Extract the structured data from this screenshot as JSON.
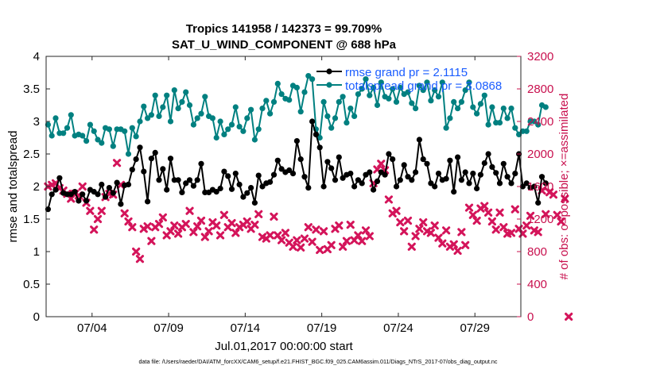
{
  "chart_data": {
    "type": "line",
    "title": "Tropics 141958 / 142373 = 99.709%",
    "subtitle": "SAT_U_WIND_COMPONENT @ 688 hPa",
    "xlabel": "Jul.01,2017 00:00:00 start",
    "ylabel_left": "rmse and totalspread",
    "ylabel_right": "# of obs: o=possible; ×=assimilated",
    "footer": "data file: /Users/raeder/DAI/ATM_forcXX/CAM6_setup/f.e21.FHIST_BGC.f09_025.CAM6assim.011/Diags_NTrS_2017-07/obs_diag_output.nc",
    "xlim": [
      1,
      32
    ],
    "ylim_left": [
      0,
      4
    ],
    "ylim_right": [
      0,
      3200
    ],
    "x_ticks": [
      4,
      9,
      14,
      19,
      24,
      29
    ],
    "x_tick_labels": [
      "07/04",
      "07/09",
      "07/14",
      "07/19",
      "07/24",
      "07/29"
    ],
    "y_left_ticks": [
      "0",
      "0.5",
      "1",
      "1.5",
      "2",
      "2.5",
      "3",
      "3.5",
      "4"
    ],
    "y_right_ticks": [
      "0",
      "400",
      "800",
      "1200",
      "1600",
      "2000",
      "2400",
      "2800",
      "3200"
    ],
    "legend": [
      {
        "label": "rmse grand pr = 2.1115",
        "color": "#000000"
      },
      {
        "label": "totalspread grand pr = 3.0868",
        "color": "#008080"
      }
    ],
    "colors": {
      "rmse": "#000000",
      "spread": "#008080",
      "obs": "#d4145a",
      "right_axis": "#c8104e",
      "legend_text": "#1a5cff"
    },
    "series": [
      {
        "name": "rmse",
        "x_start": 1.125,
        "x_step": 0.25,
        "values": [
          1.65,
          1.88,
          1.95,
          2.13,
          1.9,
          1.88,
          1.88,
          1.92,
          1.78,
          1.88,
          1.78,
          1.95,
          1.92,
          1.88,
          2.03,
          1.84,
          1.98,
          1.9,
          2.06,
          1.73,
          2.02,
          2.03,
          2.26,
          2.42,
          2.6,
          2.23,
          1.77,
          2.43,
          2.52,
          2.1,
          2.27,
          1.95,
          2.43,
          2.1,
          2.1,
          1.91,
          2.05,
          2.1,
          2.01,
          2.1,
          2.35,
          1.91,
          1.91,
          1.95,
          1.92,
          1.97,
          2.23,
          2.16,
          1.96,
          2.2,
          2.03,
          1.84,
          1.9,
          1.98,
          1.75,
          2.17,
          2.0,
          2.05,
          2.07,
          2.18,
          2.4,
          2.27,
          2.22,
          2.25,
          2.2,
          2.7,
          2.42,
          2.15,
          1.98,
          3.0,
          2.8,
          2.6,
          2.0,
          2.38,
          2.28,
          2.1,
          2.45,
          2.13,
          2.18,
          2.2,
          2.0,
          2.1,
          2.05,
          2.18,
          2.22,
          1.95,
          2.08,
          2.22,
          2.18,
          2.5,
          2.42,
          2.0,
          2.1,
          2.33,
          2.15,
          2.1,
          2.22,
          2.72,
          2.42,
          2.35,
          2.05,
          2.0,
          2.2,
          2.1,
          2.12,
          2.4,
          1.92,
          2.45,
          2.1,
          2.22,
          2.05,
          2.2,
          1.97,
          2.18,
          2.36,
          2.5,
          2.3,
          2.21,
          2.05,
          2.35,
          2.15,
          2.05,
          2.2,
          2.5,
          2.0,
          2.05,
          1.98,
          2.0,
          1.75,
          2.15,
          2.05
        ]
      },
      {
        "name": "totalspread",
        "x_start": 1.125,
        "x_step": 0.25,
        "values": [
          2.95,
          2.78,
          3.05,
          2.82,
          2.82,
          2.9,
          3.1,
          2.78,
          2.8,
          2.78,
          2.7,
          2.95,
          2.85,
          2.72,
          2.67,
          2.9,
          2.88,
          2.62,
          2.88,
          2.88,
          2.85,
          2.5,
          2.9,
          2.77,
          3.0,
          3.23,
          3.05,
          3.1,
          3.4,
          3.08,
          3.22,
          3.4,
          3.0,
          3.48,
          3.2,
          3.3,
          3.45,
          3.25,
          2.95,
          3.05,
          3.12,
          3.38,
          3.08,
          3.05,
          2.75,
          3.0,
          2.8,
          2.88,
          2.95,
          3.22,
          2.92,
          2.85,
          3.05,
          3.18,
          2.72,
          2.88,
          3.2,
          3.32,
          3.12,
          3.3,
          3.58,
          3.42,
          3.35,
          3.33,
          3.55,
          3.52,
          3.15,
          3.45,
          3.7,
          3.65,
          2.88,
          2.75,
          3.3,
          3.08,
          2.9,
          3.05,
          3.3,
          3.38,
          2.98,
          3.2,
          3.08,
          3.42,
          3.5,
          3.65,
          3.4,
          3.52,
          3.25,
          3.6,
          3.38,
          3.35,
          3.5,
          3.3,
          3.52,
          3.42,
          3.45,
          3.28,
          3.2,
          3.55,
          3.48,
          3.6,
          3.32,
          3.48,
          3.38,
          3.6,
          2.9,
          3.05,
          3.3,
          3.2,
          3.3,
          3.48,
          3.6,
          3.22,
          3.12,
          3.27,
          3.4,
          2.95,
          3.22,
          2.98,
          2.98,
          3.2,
          3.05,
          3.2,
          2.9,
          2.8,
          2.85,
          2.85,
          3.0,
          3.0,
          2.95,
          3.25,
          3.22
        ]
      },
      {
        "name": "obs_assimilated",
        "axis": "right",
        "x_start": 1.125,
        "x_step": 0.25,
        "values": [
          1600,
          1620,
          1640,
          1580,
          1550,
          1510,
          1450,
          1510,
          1490,
          1600,
          1400,
          1300,
          1070,
          1200,
          1300,
          1470,
          1510,
          1500,
          1890,
          1620,
          1270,
          1170,
          1100,
          800,
          710,
          1080,
          1110,
          930,
          1100,
          1140,
          1220,
          1000,
          1050,
          1120,
          1020,
          1100,
          1140,
          1300,
          1040,
          1110,
          1180,
          980,
          1050,
          1160,
          1120,
          1000,
          1250,
          1100,
          1150,
          1030,
          1100,
          1130,
          1170,
          1080,
          1130,
          1260,
          980,
          960,
          1000,
          1230,
          1000,
          940,
          1030,
          910,
          860,
          940,
          850,
          960,
          1100,
          920,
          1070,
          820,
          1050,
          830,
          880,
          1080,
          1120,
          860,
          930,
          1130,
          940,
          1000,
          930,
          1060,
          990,
          1640,
          1810,
          1880,
          1800,
          1440,
          1270,
          1300,
          1160,
          1050,
          1180,
          860,
          990,
          1080,
          1160,
          1050,
          1030,
          1120,
          970,
          900,
          1060,
          860,
          890,
          810,
          1040,
          880,
          1340,
          1250,
          1180,
          1330,
          1360,
          1280,
          1170,
          1070,
          1280,
          1100,
          1020,
          1030,
          1320,
          1080,
          1020,
          1120,
          1240,
          1060,
          1040,
          1550,
          1260,
          1530,
          1500,
          1250,
          1170,
          1450,
          0
        ]
      }
    ]
  }
}
